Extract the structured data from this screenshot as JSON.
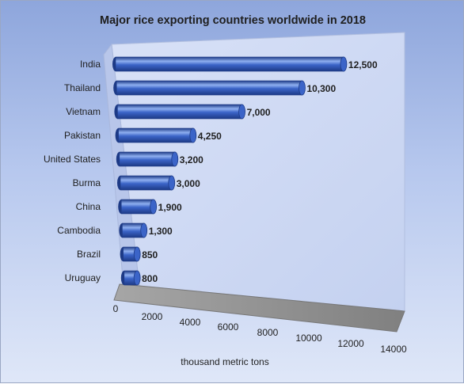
{
  "chart_data": {
    "type": "bar",
    "orientation": "horizontal",
    "style": "3d-cylinder",
    "title": "Major rice exporting countries worldwide in 2018",
    "xlabel": "thousand metric tons",
    "ylabel": "",
    "categories": [
      "India",
      "Thailand",
      "Vietnam",
      "Pakistan",
      "United States",
      "Burma",
      "China",
      "Cambodia",
      "Brazil",
      "Uruguay"
    ],
    "values": [
      12500,
      10300,
      7000,
      4250,
      3200,
      3000,
      1900,
      1300,
      850,
      800
    ],
    "value_labels": [
      "12,500",
      "10,300",
      "7,000",
      "4,250",
      "3,200",
      "3,000",
      "1,900",
      "1,300",
      "850",
      "800"
    ],
    "xlim": [
      0,
      14000
    ],
    "xticks": [
      "0",
      "2000",
      "4000",
      "6000",
      "8000",
      "10000",
      "12000",
      "14000"
    ],
    "grid": false,
    "legend": "none",
    "colors": {
      "bar": "#3b64c8",
      "bar_dark": "#1d3a86",
      "bar_light": "#8fb0f0",
      "wall": "#cdd8f3",
      "floor": "#8c8c8c"
    }
  }
}
